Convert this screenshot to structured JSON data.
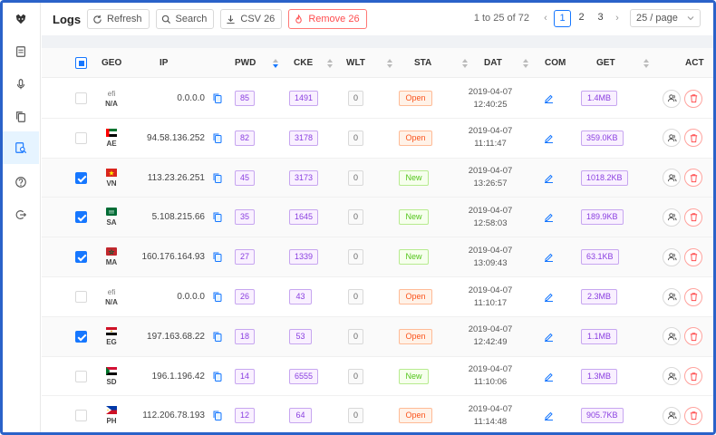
{
  "header": {
    "title": "Logs",
    "refresh_label": "Refresh",
    "search_label": "Search",
    "csv_label": "CSV 26",
    "remove_label": "Remove 26"
  },
  "pagination": {
    "info": "1 to 25 of 72",
    "pages": [
      "1",
      "2",
      "3"
    ],
    "current_page": "1",
    "page_size": "25 / page"
  },
  "sidebar": {
    "items": [
      "logo-icon",
      "document-icon",
      "microphone-icon",
      "copy-icon",
      "search-document-icon",
      "help-icon",
      "logout-icon"
    ],
    "active": "search-document-icon"
  },
  "columns": {
    "geo": "GEO",
    "ip": "IP",
    "pwd": "PWD",
    "cke": "CKE",
    "wlt": "WLT",
    "sta": "STA",
    "dat": "DAT",
    "com": "COM",
    "get": "GET",
    "act": "ACT"
  },
  "colors": {
    "accent": "#1677ff",
    "danger": "#ff4d4f",
    "purple_tag": "#8a3ee0",
    "open_tag": "#fa541c",
    "new_tag": "#52c41a"
  },
  "rows": [
    {
      "checked": false,
      "efi": "efi",
      "geo": "N/A",
      "flag": "none",
      "ip": "0.0.0.0",
      "pwd": "85",
      "cke": "1491",
      "wlt": "0",
      "sta": "Open",
      "date": "2019-04-07",
      "time": "12:40:25",
      "get": "1.4MB"
    },
    {
      "checked": false,
      "efi": "",
      "geo": "AE",
      "flag": "ae",
      "ip": "94.58.136.252",
      "pwd": "82",
      "cke": "3178",
      "wlt": "0",
      "sta": "Open",
      "date": "2019-04-07",
      "time": "11:11:47",
      "get": "359.0KB"
    },
    {
      "checked": true,
      "efi": "",
      "geo": "VN",
      "flag": "vn",
      "ip": "113.23.26.251",
      "pwd": "45",
      "cke": "3173",
      "wlt": "0",
      "sta": "New",
      "date": "2019-04-07",
      "time": "13:26:57",
      "get": "1018.2KB"
    },
    {
      "checked": true,
      "efi": "",
      "geo": "SA",
      "flag": "sa",
      "ip": "5.108.215.66",
      "pwd": "35",
      "cke": "1645",
      "wlt": "0",
      "sta": "New",
      "date": "2019-04-07",
      "time": "12:58:03",
      "get": "189.9KB"
    },
    {
      "checked": true,
      "efi": "",
      "geo": "MA",
      "flag": "ma",
      "ip": "160.176.164.93",
      "pwd": "27",
      "cke": "1339",
      "wlt": "0",
      "sta": "New",
      "date": "2019-04-07",
      "time": "13:09:43",
      "get": "63.1KB"
    },
    {
      "checked": false,
      "efi": "efi",
      "geo": "N/A",
      "flag": "none",
      "ip": "0.0.0.0",
      "pwd": "26",
      "cke": "43",
      "wlt": "0",
      "sta": "Open",
      "date": "2019-04-07",
      "time": "11:10:17",
      "get": "2.3MB"
    },
    {
      "checked": true,
      "efi": "",
      "geo": "EG",
      "flag": "eg",
      "ip": "197.163.68.22",
      "pwd": "18",
      "cke": "53",
      "wlt": "0",
      "sta": "Open",
      "date": "2019-04-07",
      "time": "12:42:49",
      "get": "1.1MB"
    },
    {
      "checked": false,
      "efi": "",
      "geo": "SD",
      "flag": "sd",
      "ip": "196.1.196.42",
      "pwd": "14",
      "cke": "6555",
      "wlt": "0",
      "sta": "New",
      "date": "2019-04-07",
      "time": "11:10:06",
      "get": "1.3MB"
    },
    {
      "checked": false,
      "efi": "",
      "geo": "PH",
      "flag": "ph",
      "ip": "112.206.78.193",
      "pwd": "12",
      "cke": "64",
      "wlt": "0",
      "sta": "Open",
      "date": "2019-04-07",
      "time": "11:14:48",
      "get": "905.7KB"
    }
  ]
}
